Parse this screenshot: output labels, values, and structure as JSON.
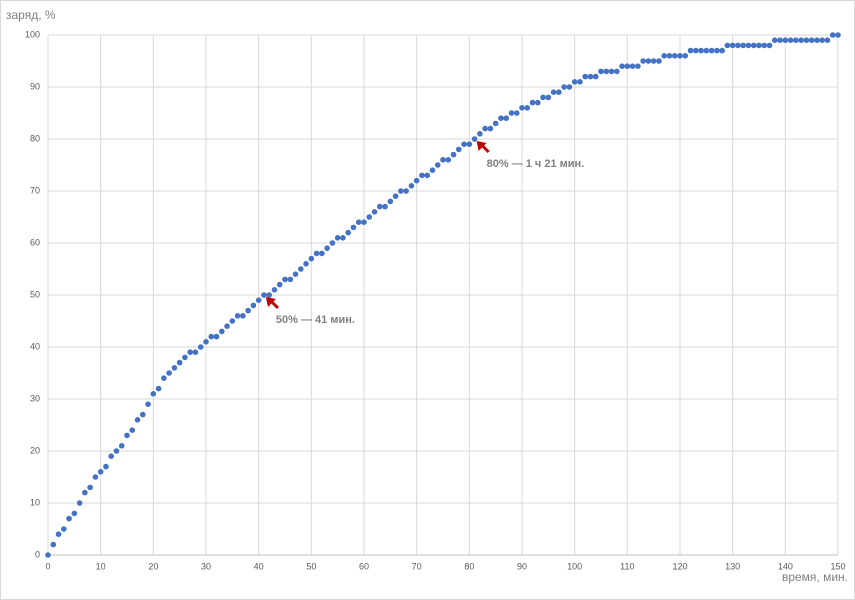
{
  "chart_data": {
    "type": "scatter",
    "y_label": "заряд, %",
    "x_label": "время, мин.",
    "color": "#4472c4",
    "grid": true,
    "xlim": [
      0,
      150
    ],
    "xticks": [
      0,
      10,
      20,
      30,
      40,
      50,
      60,
      70,
      80,
      90,
      100,
      110,
      120,
      130,
      140,
      150
    ],
    "ylim": [
      0,
      100
    ],
    "yticks": [
      0,
      10,
      20,
      30,
      40,
      50,
      60,
      70,
      80,
      90,
      100
    ],
    "x": [
      0,
      1,
      2,
      3,
      4,
      5,
      6,
      7,
      8,
      9,
      10,
      11,
      12,
      13,
      14,
      15,
      16,
      17,
      18,
      19,
      20,
      21,
      22,
      23,
      24,
      25,
      26,
      27,
      28,
      29,
      30,
      31,
      32,
      33,
      34,
      35,
      36,
      37,
      38,
      39,
      40,
      41,
      42,
      43,
      44,
      45,
      46,
      47,
      48,
      49,
      50,
      51,
      52,
      53,
      54,
      55,
      56,
      57,
      58,
      59,
      60,
      61,
      62,
      63,
      64,
      65,
      66,
      67,
      68,
      69,
      70,
      71,
      72,
      73,
      74,
      75,
      76,
      77,
      78,
      79,
      80,
      81,
      82,
      83,
      84,
      85,
      86,
      87,
      88,
      89,
      90,
      91,
      92,
      93,
      94,
      95,
      96,
      97,
      98,
      99,
      100,
      101,
      102,
      103,
      104,
      105,
      106,
      107,
      108,
      109,
      110,
      111,
      112,
      113,
      114,
      115,
      116,
      117,
      118,
      119,
      120,
      121,
      122,
      123,
      124,
      125,
      126,
      127,
      128,
      129,
      130,
      131,
      132,
      133,
      134,
      135,
      136,
      137,
      138,
      139,
      140,
      141,
      142,
      143,
      144,
      145,
      146,
      147,
      148,
      149,
      150
    ],
    "values": [
      0,
      2,
      4,
      5,
      7,
      8,
      10,
      12,
      13,
      15,
      16,
      17,
      19,
      20,
      21,
      23,
      24,
      26,
      27,
      29,
      31,
      32,
      34,
      35,
      36,
      37,
      38,
      39,
      39,
      40,
      41,
      42,
      42,
      43,
      44,
      45,
      46,
      46,
      47,
      48,
      49,
      50,
      50,
      51,
      52,
      53,
      53,
      54,
      55,
      56,
      57,
      58,
      58,
      59,
      60,
      61,
      61,
      62,
      63,
      64,
      64,
      65,
      66,
      67,
      67,
      68,
      69,
      70,
      70,
      71,
      72,
      73,
      73,
      74,
      75,
      76,
      76,
      77,
      78,
      79,
      79,
      80,
      81,
      82,
      82,
      83,
      84,
      84,
      85,
      85,
      86,
      86,
      87,
      87,
      88,
      88,
      89,
      89,
      90,
      90,
      91,
      91,
      92,
      92,
      92,
      93,
      93,
      93,
      93,
      94,
      94,
      94,
      94,
      95,
      95,
      95,
      95,
      96,
      96,
      96,
      96,
      96,
      97,
      97,
      97,
      97,
      97,
      97,
      97,
      98,
      98,
      98,
      98,
      98,
      98,
      98,
      98,
      98,
      99,
      99,
      99,
      99,
      99,
      99,
      99,
      99,
      99,
      99,
      99,
      100,
      100
    ],
    "annotations": [
      {
        "text": "50% — 41 мин.",
        "x": 41,
        "y": 50
      },
      {
        "text": "80% — 1 ч 21 мин.",
        "x": 81,
        "y": 80
      }
    ]
  }
}
